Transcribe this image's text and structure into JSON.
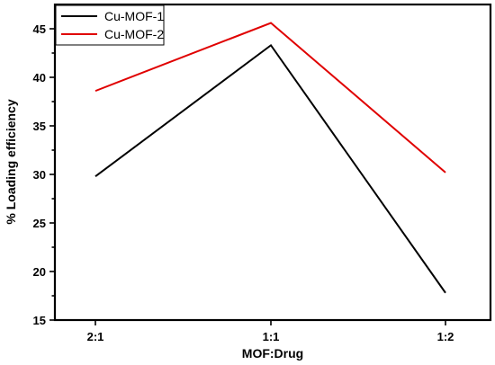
{
  "chart_data": {
    "type": "line",
    "xlabel": "MOF:Drug",
    "ylabel": "% Loading efficiency",
    "categories": [
      "2:1",
      "1:1",
      "1:2"
    ],
    "ylim": [
      15,
      47.5
    ],
    "yticks": [
      15,
      20,
      25,
      30,
      35,
      40,
      45
    ],
    "grid": false,
    "legend_position": "top-left",
    "series": [
      {
        "name": "Cu-MOF-1",
        "color": "#000000",
        "values": [
          29.8,
          43.3,
          17.8
        ]
      },
      {
        "name": "Cu-MOF-2",
        "color": "#e00000",
        "values": [
          38.6,
          45.6,
          30.2
        ]
      }
    ]
  }
}
